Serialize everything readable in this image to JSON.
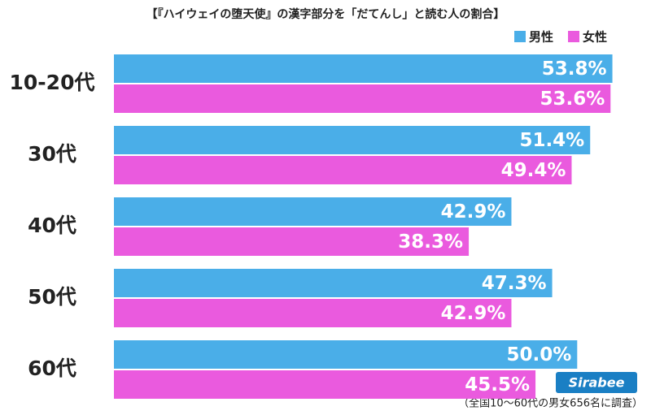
{
  "chart_data": {
    "type": "bar",
    "orientation": "horizontal",
    "title": "【『ハイウェイの堕天使』の漢字部分を「だてんし」と読む人の割合】",
    "categories": [
      "10-20代",
      "30代",
      "40代",
      "50代",
      "60代"
    ],
    "series": [
      {
        "name": "男性",
        "color": "#4aaee8",
        "values": [
          53.8,
          51.4,
          42.9,
          47.3,
          50.0
        ],
        "value_labels": [
          "53.8%",
          "51.4%",
          "42.9%",
          "47.3%",
          "50.0%"
        ]
      },
      {
        "name": "女性",
        "color": "#ea5ade",
        "values": [
          53.6,
          49.4,
          38.3,
          42.9,
          45.5
        ],
        "value_labels": [
          "53.6%",
          "49.4%",
          "38.3%",
          "42.9%",
          "45.5%"
        ]
      }
    ],
    "xlim": [
      0,
      57
    ],
    "legend": "top-right",
    "note": "（全国10〜60代の男女656名に調査）",
    "logo": "Sirabee"
  }
}
